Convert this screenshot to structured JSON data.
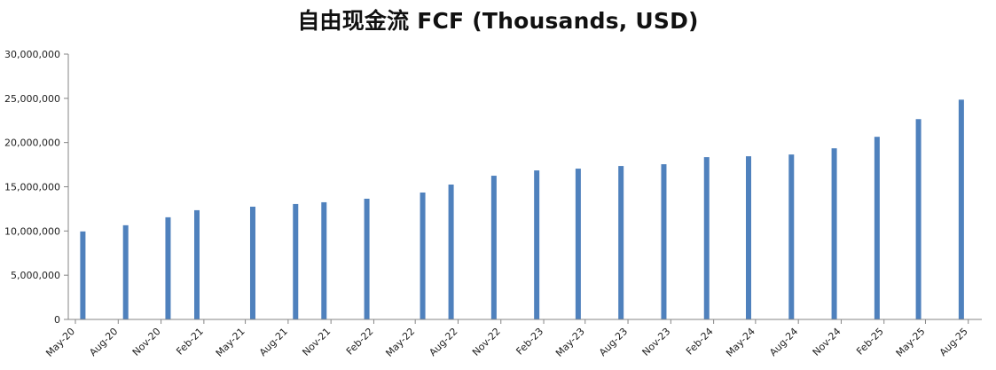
{
  "chart_data": {
    "type": "bar",
    "title": "自由现金流 FCF (Thousands, USD)",
    "xlabel": "",
    "ylabel": "",
    "ylim": [
      0,
      30000000
    ],
    "yticks": [
      "0",
      "5,000,000",
      "10,000,000",
      "15,000,000",
      "20,000,000",
      "25,000,000",
      "30,000,000"
    ],
    "grid": false,
    "legend": "none",
    "bar_color": "#4f81bd",
    "x_dates": [
      "2020-05",
      "2020-08",
      "2020-11",
      "2021-02",
      "2021-05",
      "2021-08",
      "2021-11",
      "2022-02",
      "2022-05",
      "2022-08",
      "2022-11",
      "2023-02",
      "2023-05",
      "2023-08",
      "2023-11",
      "2024-02",
      "2024-05",
      "2024-08",
      "2024-11",
      "2025-02",
      "2025-05",
      "2025-08"
    ],
    "categories": [
      "May-20",
      "Aug-20",
      "Nov-20",
      "Feb-21",
      "May-21",
      "Aug-21",
      "Nov-21",
      "Feb-22",
      "May-22",
      "Aug-22",
      "Nov-22",
      "Feb-23",
      "May-23",
      "Aug-23",
      "Nov-23",
      "Feb-24",
      "May-24",
      "Aug-24",
      "Nov-24",
      "Feb-25",
      "May-25",
      "Aug-25"
    ],
    "bars": [
      {
        "date": "2020-05-31",
        "value": 9950000
      },
      {
        "date": "2020-08-31",
        "value": 10650000
      },
      {
        "date": "2020-11-30",
        "value": 11550000
      },
      {
        "date": "2021-01-31",
        "value": 12350000
      },
      {
        "date": "2021-05-31",
        "value": 12750000
      },
      {
        "date": "2021-08-31",
        "value": 13050000
      },
      {
        "date": "2021-10-31",
        "value": 13250000
      },
      {
        "date": "2022-01-31",
        "value": 13650000
      },
      {
        "date": "2022-05-31",
        "value": 14350000
      },
      {
        "date": "2022-07-31",
        "value": 15250000
      },
      {
        "date": "2022-10-31",
        "value": 16250000
      },
      {
        "date": "2023-01-31",
        "value": 16850000
      },
      {
        "date": "2023-04-30",
        "value": 17050000
      },
      {
        "date": "2023-07-31",
        "value": 17350000
      },
      {
        "date": "2023-10-31",
        "value": 17550000
      },
      {
        "date": "2024-01-31",
        "value": 18350000
      },
      {
        "date": "2024-04-30",
        "value": 18450000
      },
      {
        "date": "2024-07-31",
        "value": 18650000
      },
      {
        "date": "2024-10-31",
        "value": 19350000
      },
      {
        "date": "2025-01-31",
        "value": 20650000
      },
      {
        "date": "2025-04-30",
        "value": 22650000
      },
      {
        "date": "2025-07-31",
        "value": 24850000
      }
    ]
  }
}
